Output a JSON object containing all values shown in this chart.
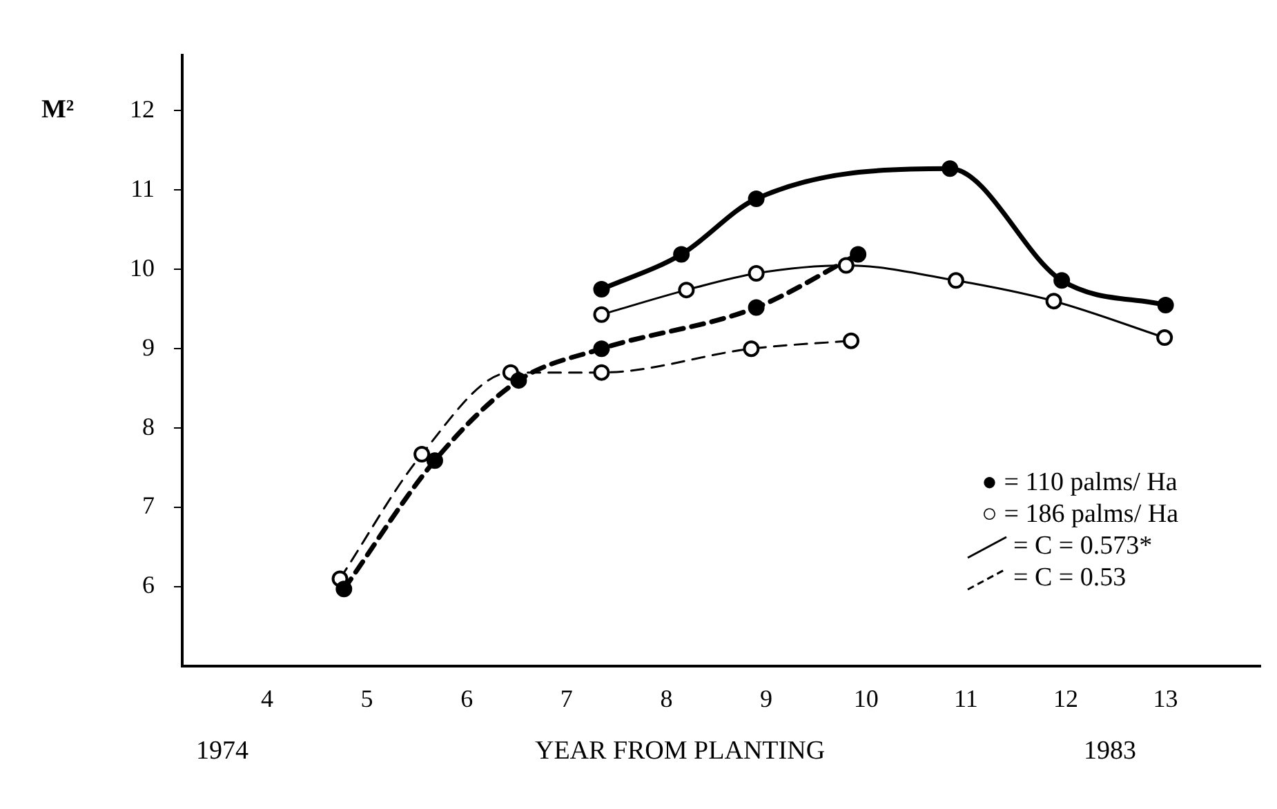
{
  "chart_data": {
    "type": "line",
    "xlabel": "YEAR FROM PLANTING",
    "ylabel": "M²",
    "xlim": [
      3.15,
      13.95
    ],
    "xticks": [
      4,
      5,
      6,
      7,
      8,
      9,
      10,
      11,
      12,
      13
    ],
    "ylim": [
      5,
      12.7
    ],
    "yticks": [
      6,
      7,
      8,
      9,
      10,
      11,
      12
    ],
    "grid": false,
    "legend": false,
    "marker": "circle",
    "annotations": [
      "1974",
      "1983",
      "● = 110 palms/ Ha",
      "○ = 186 palms/ Ha",
      "= C = 0.573*",
      "= C = 0.53"
    ],
    "series": [
      {
        "color": "#000000",
        "line_style": "solid",
        "x": [
          7.35,
          8.15,
          8.9,
          10.84,
          11.96,
          13.0
        ],
        "values": [
          9.75,
          10.19,
          10.89,
          11.27,
          9.86,
          9.55
        ]
      },
      {
        "color": "#000000",
        "line_style": "solid",
        "x": [
          7.35,
          8.2,
          8.9,
          9.8,
          10.9,
          11.88,
          12.99
        ],
        "values": [
          9.43,
          9.74,
          9.95,
          10.05,
          9.86,
          9.6,
          9.14
        ]
      },
      {
        "color": "#000000",
        "line_style": "dashed",
        "x": [
          4.77,
          5.68,
          6.52,
          7.35,
          8.9,
          9.92
        ],
        "values": [
          5.97,
          7.59,
          8.6,
          9.0,
          9.52,
          10.19
        ]
      },
      {
        "color": "#000000",
        "line_style": "dashed",
        "x": [
          4.73,
          5.55,
          6.44,
          7.35,
          8.85,
          9.85
        ],
        "values": [
          6.1,
          7.67,
          8.7,
          8.7,
          9.0,
          9.1
        ]
      }
    ]
  }
}
